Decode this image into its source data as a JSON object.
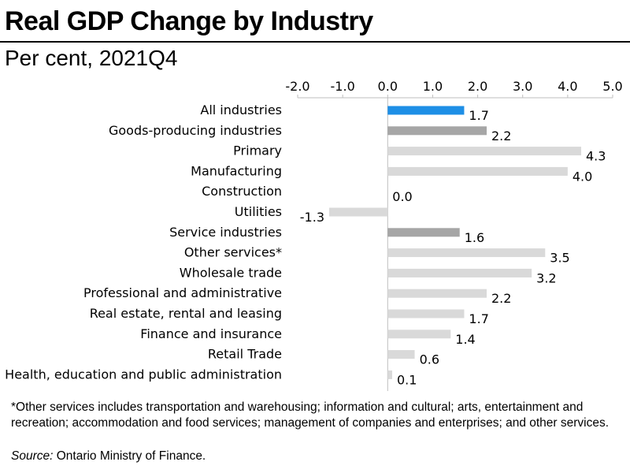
{
  "chart_data": {
    "type": "bar",
    "orientation": "horizontal",
    "title": "Real GDP Change by Industry",
    "subtitle": "Per cent, 2021Q4",
    "xlim": [
      -2.0,
      5.0
    ],
    "ticks": [
      "-2.0",
      "-1.0",
      "0.0",
      "1.0",
      "2.0",
      "3.0",
      "4.0",
      "5.0"
    ],
    "tick_values": [
      -2,
      -1,
      0,
      1,
      2,
      3,
      4,
      5
    ],
    "categories": [
      "All industries",
      "Goods-producing industries",
      "Primary",
      "Manufacturing",
      "Construction",
      "Utilities",
      "Service industries",
      "Other services*",
      "Wholesale trade",
      "Professional and administrative",
      "Real estate, rental and leasing",
      "Finance and insurance",
      "Retail Trade",
      "Health, education and public administration"
    ],
    "values": [
      1.7,
      2.2,
      4.3,
      4.0,
      0.0,
      -1.3,
      1.6,
      3.5,
      3.2,
      2.2,
      1.7,
      1.4,
      0.6,
      0.1
    ],
    "value_labels": [
      "1.7",
      "2.2",
      "4.3",
      "4.0",
      "0.0",
      "-1.3",
      "1.6",
      "3.5",
      "3.2",
      "2.2",
      "1.7",
      "1.4",
      "0.6",
      "0.1"
    ],
    "bar_kinds": [
      "total",
      "sector",
      "sub",
      "sub",
      "sub",
      "sub",
      "sector",
      "sub",
      "sub",
      "sub",
      "sub",
      "sub",
      "sub",
      "sub"
    ],
    "colors": {
      "total": "#1e8fe6",
      "sector": "#a6a6a6",
      "sub": "#d9d9d9",
      "axis": "#bfbfbf"
    },
    "grid": false
  },
  "footnote": "*Other services includes transportation and warehousing; information and cultural; arts, entertainment and recreation; accommodation and food services; management of companies and enterprises; and other services.",
  "source": {
    "label": "Source:",
    "text": " Ontario Ministry of Finance."
  }
}
